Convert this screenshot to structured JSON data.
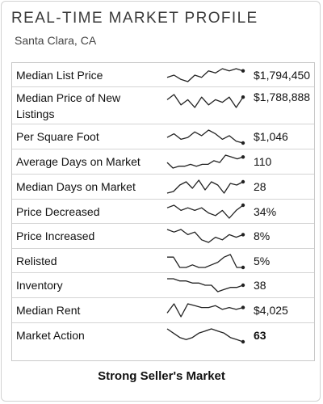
{
  "header": {
    "title": "Real-Time Market Profile",
    "location": "Santa Clara, CA"
  },
  "rows": [
    {
      "label": "Median List Price",
      "value": "$1,794,450",
      "trend": [
        5,
        6,
        4,
        3,
        6,
        5,
        8,
        7,
        9,
        8,
        9,
        8
      ]
    },
    {
      "label": "Median Price of New Listings",
      "value": "$1,788,888",
      "trend": [
        8,
        10,
        6,
        8,
        5,
        9,
        6,
        8,
        7,
        9,
        5,
        9
      ]
    },
    {
      "label": "Per Square Foot",
      "value": "$1,046",
      "trend": [
        6,
        8,
        5,
        6,
        9,
        7,
        10,
        8,
        5,
        7,
        4,
        3
      ]
    },
    {
      "label": "Average Days on Market",
      "value": "110",
      "trend": [
        4,
        1,
        2,
        2,
        3,
        2,
        3,
        3,
        5,
        4,
        8,
        7,
        6,
        7
      ]
    },
    {
      "label": "Median Days on Market",
      "value": "28",
      "trend": [
        1,
        2,
        6,
        8,
        4,
        9,
        3,
        8,
        6,
        1,
        7,
        6,
        8
      ]
    },
    {
      "label": "Price Decreased",
      "value": "34%",
      "trend": [
        7,
        8,
        6,
        7,
        6,
        7,
        5,
        4,
        6,
        3,
        6,
        8
      ]
    },
    {
      "label": "Price Increased",
      "value": "8%",
      "trend": [
        9,
        8,
        9,
        7,
        8,
        5,
        4,
        6,
        5,
        7,
        6,
        7
      ]
    },
    {
      "label": "Relisted",
      "value": "5%",
      "trend": [
        7,
        7,
        3,
        3,
        4,
        3,
        3,
        4,
        5,
        7,
        8,
        3,
        3
      ]
    },
    {
      "label": "Inventory",
      "value": "38",
      "trend": [
        9,
        9,
        8,
        8,
        7,
        7,
        6,
        6,
        3,
        4,
        5,
        5,
        6
      ]
    },
    {
      "label": "Median Rent",
      "value": "$4,025",
      "trend": [
        4,
        9,
        2,
        9,
        8,
        7,
        7,
        8,
        6,
        7,
        6,
        7
      ]
    },
    {
      "label": "Market Action",
      "value": "63",
      "trend": [
        8,
        6,
        4,
        3,
        4,
        6,
        7,
        8,
        7,
        6,
        4,
        3,
        2
      ]
    }
  ],
  "footer": {
    "status": "Strong Seller's Market"
  }
}
